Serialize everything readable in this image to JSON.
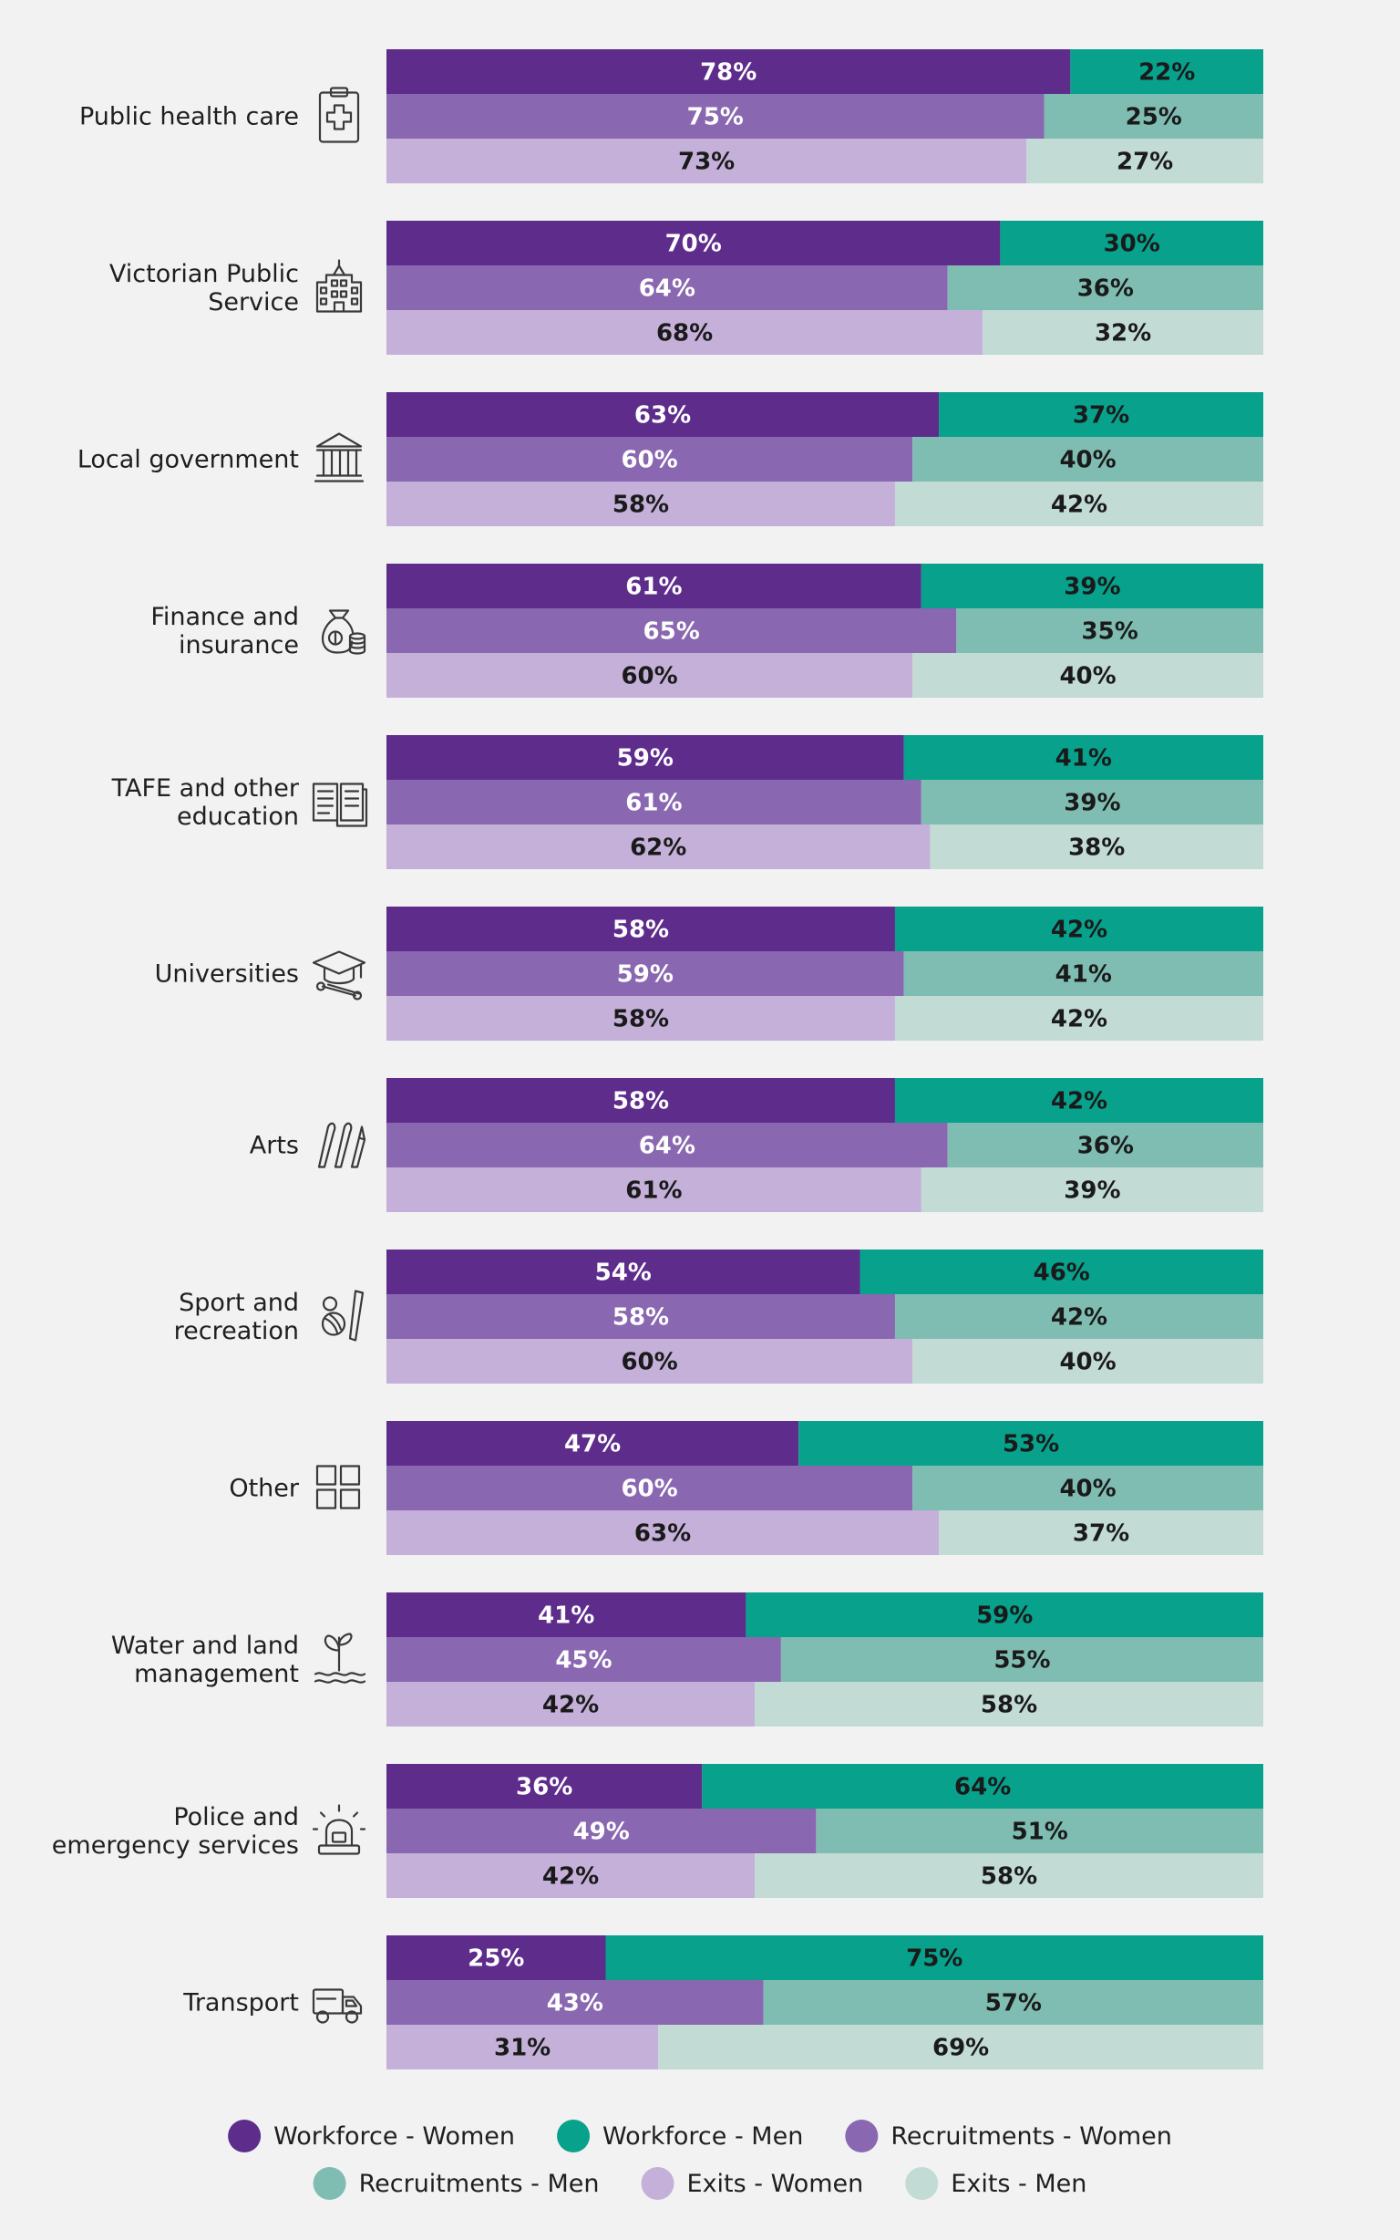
{
  "chart_data": {
    "type": "bar",
    "orientation": "horizontal",
    "stacked": "100%",
    "categories": [
      {
        "label_lines": [
          "Public health care"
        ],
        "icon": "medical-clipboard-icon"
      },
      {
        "label_lines": [
          "Victorian Public",
          "Service"
        ],
        "icon": "building-icon"
      },
      {
        "label_lines": [
          "Local government"
        ],
        "icon": "columned-building-icon"
      },
      {
        "label_lines": [
          "Finance and",
          "insurance"
        ],
        "icon": "money-bag-coins-icon"
      },
      {
        "label_lines": [
          "TAFE and other",
          "education"
        ],
        "icon": "open-book-icon"
      },
      {
        "label_lines": [
          "Universities"
        ],
        "icon": "graduation-cap-diploma-icon"
      },
      {
        "label_lines": [
          "Arts"
        ],
        "icon": "brushes-icon"
      },
      {
        "label_lines": [
          "Sport and",
          "recreation"
        ],
        "icon": "ball-bat-icon"
      },
      {
        "label_lines": [
          "Other"
        ],
        "icon": "grid-squares-icon"
      },
      {
        "label_lines": [
          "Water and land",
          "management"
        ],
        "icon": "plant-water-icon"
      },
      {
        "label_lines": [
          "Police and",
          "emergency services"
        ],
        "icon": "siren-light-icon"
      },
      {
        "label_lines": [
          "Transport"
        ],
        "icon": "truck-icon"
      }
    ],
    "groups": [
      {
        "name": "Workforce",
        "women_color": "#5e2d8c",
        "men_color": "#07a18c",
        "women_text": "#ffffff",
        "men_text": "#1a1a1a"
      },
      {
        "name": "Recruitments",
        "women_color": "#8a68b1",
        "men_color": "#7fbdb2",
        "women_text": "#ffffff",
        "men_text": "#1a1a1a"
      },
      {
        "name": "Exits",
        "women_color": "#c4b0d8",
        "men_color": "#c2dbd5",
        "women_text": "#1a1a1a",
        "men_text": "#1a1a1a"
      }
    ],
    "series": [
      {
        "name": "Workforce - Women",
        "values": [
          78,
          70,
          63,
          61,
          59,
          58,
          58,
          54,
          47,
          41,
          36,
          25
        ]
      },
      {
        "name": "Workforce - Men",
        "values": [
          22,
          30,
          37,
          39,
          41,
          42,
          42,
          46,
          53,
          59,
          64,
          75
        ]
      },
      {
        "name": "Recruitments - Women",
        "values": [
          75,
          64,
          60,
          65,
          61,
          59,
          64,
          58,
          60,
          45,
          49,
          43
        ]
      },
      {
        "name": "Recruitments - Men",
        "values": [
          25,
          36,
          40,
          35,
          39,
          41,
          36,
          42,
          40,
          55,
          51,
          57
        ]
      },
      {
        "name": "Exits - Women",
        "values": [
          73,
          68,
          58,
          60,
          62,
          58,
          61,
          60,
          63,
          42,
          42,
          31
        ]
      },
      {
        "name": "Exits - Men",
        "values": [
          27,
          32,
          42,
          40,
          38,
          42,
          39,
          40,
          37,
          58,
          58,
          69
        ]
      }
    ],
    "value_suffix": "%",
    "xlim": [
      0,
      100
    ],
    "legend": {
      "placement": "bottom",
      "rows": [
        [
          {
            "label": "Workforce - Women",
            "color": "#5e2d8c"
          },
          {
            "label": "Workforce - Men",
            "color": "#07a18c"
          },
          {
            "label": "Recruitments - Women",
            "color": "#8a68b1"
          }
        ],
        [
          {
            "label": "Recruitments - Men",
            "color": "#7fbdb2"
          },
          {
            "label": "Exits - Women",
            "color": "#c4b0d8"
          },
          {
            "label": "Exits - Men",
            "color": "#c2dbd5"
          }
        ]
      ]
    },
    "grid": false
  }
}
